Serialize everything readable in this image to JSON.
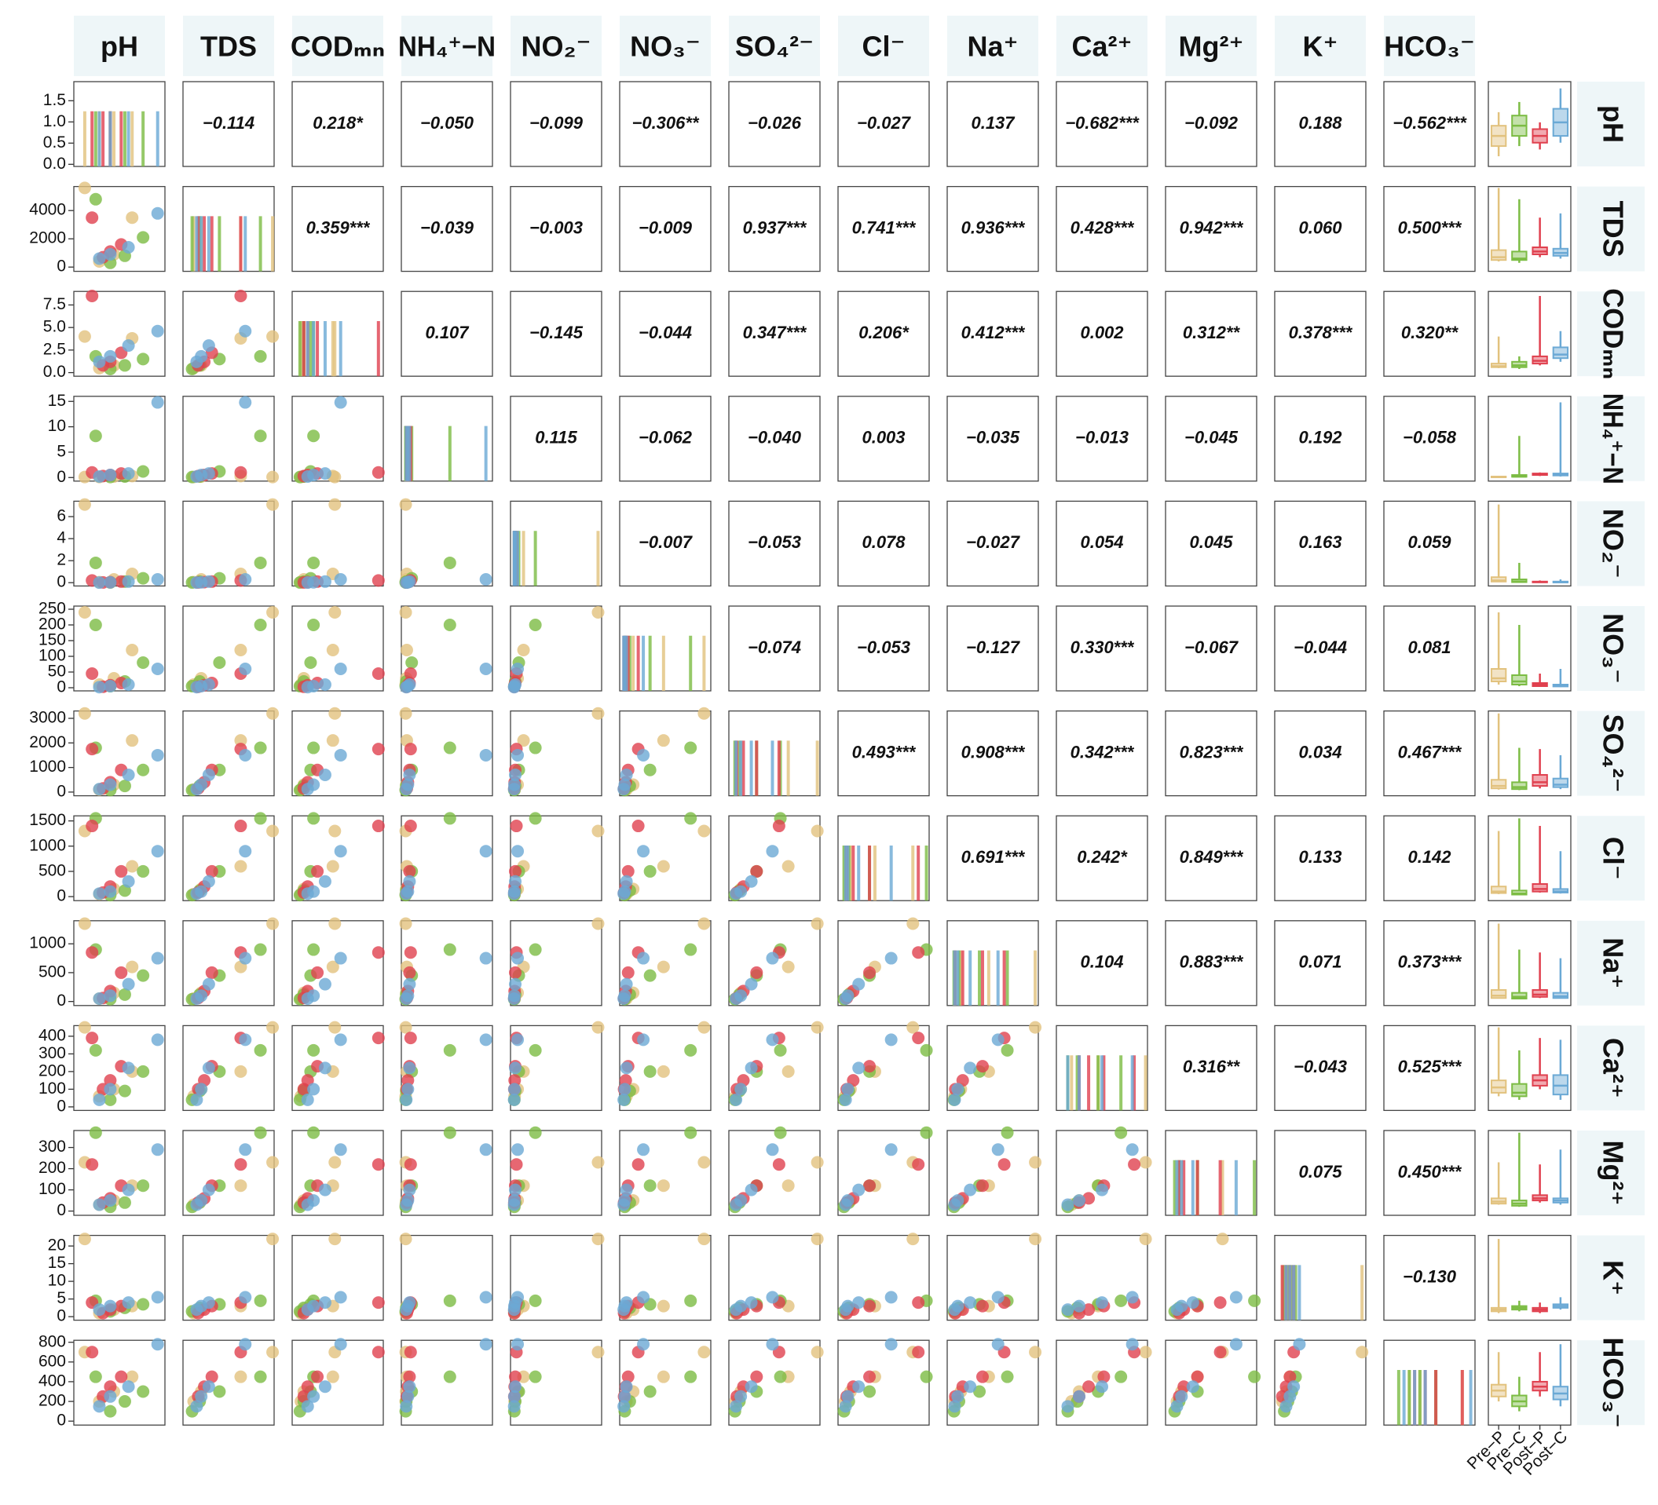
{
  "chart_data": {
    "type": "pairplot",
    "variables": [
      {
        "name": "pH",
        "lim": [
          6.5,
          9.0
        ]
      },
      {
        "name": "TDS",
        "lim": [
          -300,
          5700
        ],
        "ticks": [
          0,
          2000,
          4000
        ]
      },
      {
        "name": "CODₘₙ",
        "lim": [
          -0.4,
          9
        ],
        "ticks": [
          {
            "value": 0,
            "label": "0.0"
          },
          {
            "value": 2.5,
            "label": "2.5"
          },
          {
            "value": 5,
            "label": "5.0"
          },
          {
            "value": 7.5,
            "label": "7.5"
          }
        ]
      },
      {
        "name": "NH₄⁺−N",
        "lim": [
          -0.7,
          16
        ],
        "ticks": [
          0,
          5,
          10,
          15
        ]
      },
      {
        "name": "NO₂⁻",
        "lim": [
          -0.3,
          7.4
        ],
        "ticks": [
          0,
          2,
          4,
          6
        ]
      },
      {
        "name": "NO₃⁻",
        "lim": [
          -10,
          260
        ],
        "ticks": [
          0,
          50,
          100,
          150,
          200,
          250
        ]
      },
      {
        "name": "SO₄²⁻",
        "lim": [
          -150,
          3300
        ],
        "ticks": [
          0,
          1000,
          2000,
          3000
        ]
      },
      {
        "name": "Cl⁻",
        "lim": [
          -80,
          1600
        ],
        "ticks": [
          0,
          500,
          1000,
          1500
        ]
      },
      {
        "name": "Na⁺",
        "lim": [
          -70,
          1400
        ],
        "ticks": [
          0,
          500,
          1000
        ]
      },
      {
        "name": "Ca²⁺",
        "lim": [
          -20,
          460
        ],
        "ticks": [
          0,
          100,
          200,
          300,
          400
        ]
      },
      {
        "name": "Mg²⁺",
        "lim": [
          -20,
          380
        ],
        "ticks": [
          0,
          100,
          200,
          300
        ]
      },
      {
        "name": "K⁺",
        "lim": [
          -1,
          23
        ],
        "ticks": [
          0,
          5,
          10,
          15,
          20
        ]
      },
      {
        "name": "HCO₃⁻",
        "lim": [
          -40,
          820
        ],
        "ticks": [
          0,
          200,
          400,
          600,
          800
        ]
      }
    ],
    "density_ylim": [
      -0.05,
      1.95
    ],
    "density_yticks": [
      {
        "value": 0,
        "label": "0.0"
      },
      {
        "value": 0.5,
        "label": "0.5"
      },
      {
        "value": 1,
        "label": "1.0"
      },
      {
        "value": 1.5,
        "label": "1.5"
      }
    ],
    "groups": [
      {
        "name": "Pre−P",
        "color": "#e2c27e",
        "observations": [
          [
            7.2,
            7.6,
            8.1,
            6.8
          ],
          [
            400,
            900,
            3500,
            5600
          ],
          [
            0.5,
            0.8,
            3.8,
            4.0
          ],
          [
            0.1,
            0.2,
            0.3,
            0.1
          ],
          [
            0.05,
            0.3,
            0.8,
            7.1
          ],
          [
            10,
            30,
            120,
            240
          ],
          [
            100,
            300,
            2100,
            3200
          ],
          [
            50,
            150,
            600,
            1300
          ],
          [
            50,
            150,
            600,
            1350
          ],
          [
            60,
            100,
            200,
            450
          ],
          [
            30,
            50,
            120,
            230
          ],
          [
            1,
            2,
            3,
            22
          ],
          [
            200,
            300,
            450,
            700
          ]
        ],
        "box": [
          [
            6.8,
            7.1,
            7.4,
            7.7,
            8.1
          ],
          [
            400,
            500,
            700,
            1200,
            5600
          ],
          [
            0.5,
            0.6,
            0.7,
            1.0,
            4.0
          ],
          [
            0.1,
            0.1,
            0.15,
            0.2,
            0.3
          ],
          [
            0.05,
            0.1,
            0.2,
            0.5,
            7.1
          ],
          [
            10,
            20,
            30,
            60,
            240
          ],
          [
            100,
            150,
            250,
            500,
            3200
          ],
          [
            50,
            70,
            100,
            200,
            1300
          ],
          [
            50,
            60,
            100,
            200,
            1350
          ],
          [
            60,
            80,
            110,
            150,
            450
          ],
          [
            30,
            35,
            45,
            60,
            230
          ],
          [
            1,
            1.5,
            2,
            2.5,
            22
          ],
          [
            200,
            250,
            310,
            370,
            700
          ]
        ]
      },
      {
        "name": "Pre−C",
        "color": "#7cbc44",
        "observations": [
          [
            7.5,
            7.9,
            8.4,
            7.1
          ],
          [
            300,
            800,
            2100,
            4800
          ],
          [
            0.4,
            0.8,
            1.5,
            1.8
          ],
          [
            0.1,
            0.2,
            1.2,
            8.2
          ],
          [
            0.02,
            0.1,
            0.4,
            1.8
          ],
          [
            5,
            20,
            80,
            200
          ],
          [
            80,
            250,
            900,
            1800
          ],
          [
            30,
            120,
            500,
            1550
          ],
          [
            40,
            120,
            450,
            900
          ],
          [
            40,
            90,
            200,
            320
          ],
          [
            20,
            40,
            120,
            370
          ],
          [
            1.5,
            2.5,
            3.5,
            4.5
          ],
          [
            100,
            200,
            300,
            450
          ]
        ],
        "box": [
          [
            7.1,
            7.4,
            7.7,
            8.0,
            8.4
          ],
          [
            300,
            500,
            600,
            1100,
            4800
          ],
          [
            0.4,
            0.6,
            0.8,
            1.2,
            1.8
          ],
          [
            0.1,
            0.15,
            0.2,
            0.5,
            8.2
          ],
          [
            0.02,
            0.05,
            0.1,
            0.3,
            1.8
          ],
          [
            5,
            10,
            20,
            40,
            200
          ],
          [
            80,
            120,
            200,
            400,
            1800
          ],
          [
            30,
            40,
            60,
            120,
            1550
          ],
          [
            40,
            50,
            80,
            150,
            900
          ],
          [
            40,
            60,
            80,
            130,
            320
          ],
          [
            20,
            25,
            35,
            50,
            370
          ],
          [
            1.5,
            2,
            2.5,
            3,
            4.5
          ],
          [
            100,
            150,
            200,
            260,
            450
          ]
        ]
      },
      {
        "name": "Post−P",
        "color": "#e0414f",
        "observations": [
          [
            7.3,
            7.5,
            7.8,
            7.0
          ],
          [
            700,
            1100,
            1600,
            3500
          ],
          [
            0.8,
            1.2,
            2.2,
            8.5
          ],
          [
            0.3,
            0.5,
            0.8,
            1.0
          ],
          [
            0.02,
            0.05,
            0.1,
            0.2
          ],
          [
            3,
            8,
            15,
            45
          ],
          [
            150,
            400,
            900,
            1750
          ],
          [
            80,
            200,
            500,
            1400
          ],
          [
            60,
            180,
            500,
            850
          ],
          [
            100,
            150,
            230,
            390
          ],
          [
            40,
            60,
            120,
            220
          ],
          [
            1,
            2,
            3,
            4
          ],
          [
            250,
            350,
            450,
            700
          ]
        ],
        "box": [
          [
            7.0,
            7.2,
            7.4,
            7.6,
            7.8
          ],
          [
            700,
            900,
            1100,
            1400,
            3500
          ],
          [
            0.8,
            1.0,
            1.3,
            1.8,
            8.5
          ],
          [
            0.3,
            0.5,
            0.6,
            0.8,
            1.0
          ],
          [
            0.02,
            0.04,
            0.07,
            0.1,
            0.2
          ],
          [
            3,
            5,
            10,
            15,
            45
          ],
          [
            150,
            250,
            400,
            700,
            1750
          ],
          [
            80,
            100,
            150,
            250,
            1400
          ],
          [
            60,
            80,
            120,
            200,
            850
          ],
          [
            100,
            120,
            150,
            180,
            390
          ],
          [
            40,
            50,
            60,
            75,
            220
          ],
          [
            1,
            1.5,
            2,
            2.5,
            4
          ],
          [
            250,
            310,
            350,
            400,
            700
          ]
        ]
      },
      {
        "name": "Post−C",
        "color": "#6ba9d5",
        "observations": [
          [
            7.2,
            7.5,
            8.0,
            8.8
          ],
          [
            600,
            900,
            1400,
            3800
          ],
          [
            1.2,
            1.8,
            3.0,
            4.6
          ],
          [
            0.2,
            0.5,
            0.8,
            14.8
          ],
          [
            0.01,
            0.03,
            0.1,
            0.3
          ],
          [
            2,
            5,
            10,
            60
          ],
          [
            120,
            300,
            700,
            1500
          ],
          [
            60,
            100,
            300,
            900
          ],
          [
            50,
            100,
            300,
            750
          ],
          [
            40,
            100,
            220,
            380
          ],
          [
            30,
            50,
            100,
            290
          ],
          [
            2,
            3,
            4,
            5.5
          ],
          [
            150,
            250,
            350,
            780
          ]
        ],
        "box": [
          [
            7.2,
            7.4,
            7.8,
            8.2,
            8.8
          ],
          [
            600,
            800,
            1000,
            1300,
            3800
          ],
          [
            1.2,
            1.6,
            2.0,
            2.8,
            4.6
          ],
          [
            0.2,
            0.4,
            0.6,
            0.8,
            14.8
          ],
          [
            0.01,
            0.02,
            0.05,
            0.1,
            0.3
          ],
          [
            2,
            4,
            6,
            10,
            60
          ],
          [
            120,
            200,
            300,
            550,
            1500
          ],
          [
            60,
            80,
            100,
            150,
            900
          ],
          [
            50,
            60,
            90,
            150,
            750
          ],
          [
            40,
            70,
            120,
            180,
            380
          ],
          [
            30,
            40,
            50,
            60,
            290
          ],
          [
            2,
            2.5,
            3,
            3.5,
            5.5
          ],
          [
            150,
            220,
            280,
            350,
            780
          ]
        ]
      }
    ],
    "correlations": [
      [
        "−0.114",
        "0.218*",
        "−0.050",
        "−0.099",
        "−0.306**",
        "−0.026",
        "−0.027",
        "0.137",
        "−0.682***",
        "−0.092",
        "0.188",
        "−0.562***"
      ],
      [
        "0.359***",
        "−0.039",
        "−0.003",
        "−0.009",
        "0.937***",
        "0.741***",
        "0.936***",
        "0.428***",
        "0.942***",
        "0.060",
        "0.500***"
      ],
      [
        "0.107",
        "−0.145",
        "−0.044",
        "0.347***",
        "0.206*",
        "0.412***",
        "0.002",
        "0.312**",
        "0.378***",
        "0.320**"
      ],
      [
        "0.115",
        "−0.062",
        "−0.040",
        "0.003",
        "−0.035",
        "−0.013",
        "−0.045",
        "0.192",
        "−0.058"
      ],
      [
        "−0.007",
        "−0.053",
        "0.078",
        "−0.027",
        "0.054",
        "0.045",
        "0.163",
        "0.059"
      ],
      [
        "−0.074",
        "−0.053",
        "−0.127",
        "0.330***",
        "−0.067",
        "−0.044",
        "0.081"
      ],
      [
        "0.493***",
        "0.908***",
        "0.342***",
        "0.823***",
        "0.034",
        "0.467***"
      ],
      [
        "0.691***",
        "0.242*",
        "0.849***",
        "0.133",
        "0.142"
      ],
      [
        "0.104",
        "0.883***",
        "0.071",
        "0.373***"
      ],
      [
        "0.316**",
        "−0.043",
        "0.525***"
      ],
      [
        "0.075",
        "0.450***"
      ],
      [
        "−0.130"
      ]
    ]
  }
}
